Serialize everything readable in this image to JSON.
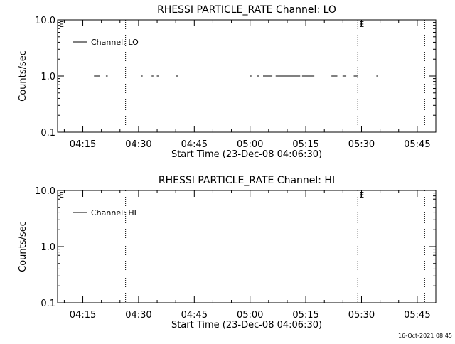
{
  "footer": {
    "timestamp": "16-Oct-2021 08:45"
  },
  "chart_data": [
    {
      "type": "line",
      "title": "RHESSI PARTICLE_RATE Channel: LO",
      "xlabel": "Start Time (23-Dec-08 04:06:30)",
      "ylabel": "Counts/sec",
      "yscale": "log",
      "ylim": [
        0.1,
        10.0
      ],
      "yticks": [
        {
          "value": 0.1,
          "label": "0.1"
        },
        {
          "value": 1.0,
          "label": "1.0"
        },
        {
          "value": 10.0,
          "label": "10.0"
        }
      ],
      "xlim_minutes": [
        248.2,
        350.0
      ],
      "xticks": [
        {
          "minute": 255,
          "label": "04:15"
        },
        {
          "minute": 270,
          "label": "04:30"
        },
        {
          "minute": 285,
          "label": "04:45"
        },
        {
          "minute": 300,
          "label": "05:00"
        },
        {
          "minute": 315,
          "label": "05:15"
        },
        {
          "minute": 330,
          "label": "05:30"
        },
        {
          "minute": 345,
          "label": "05:45"
        }
      ],
      "event_lines": [
        {
          "minute": 266.5,
          "label": ""
        },
        {
          "minute": 329.0,
          "label": "E"
        },
        {
          "minute": 347.0,
          "label": ""
        }
      ],
      "start_marker": "E",
      "legend": {
        "position": "top-left",
        "entries": [
          "Channel: LO"
        ]
      },
      "series": [
        {
          "name": "Channel: LO",
          "segments": [
            [
              258.0,
              259.5,
              1.0
            ],
            [
              261.2,
              261.7,
              1.0
            ],
            [
              270.6,
              271.1,
              1.0
            ],
            [
              273.5,
              274.0,
              1.0
            ],
            [
              274.9,
              275.4,
              1.0
            ],
            [
              280.1,
              280.6,
              1.0
            ],
            [
              299.9,
              300.4,
              1.0
            ],
            [
              301.9,
              302.4,
              1.0
            ],
            [
              303.5,
              306.0,
              1.0
            ],
            [
              306.9,
              313.5,
              1.0
            ],
            [
              314.0,
              317.3,
              1.0
            ],
            [
              321.9,
              323.5,
              1.0
            ],
            [
              324.9,
              325.9,
              1.0
            ],
            [
              327.9,
              328.9,
              1.0
            ],
            [
              334.0,
              334.5,
              1.0
            ]
          ]
        }
      ]
    },
    {
      "type": "line",
      "title": "RHESSI PARTICLE_RATE Channel: HI",
      "xlabel": "Start Time (23-Dec-08 04:06:30)",
      "ylabel": "Counts/sec",
      "yscale": "log",
      "ylim": [
        0.1,
        10.0
      ],
      "yticks": [
        {
          "value": 0.1,
          "label": "0.1"
        },
        {
          "value": 1.0,
          "label": "1.0"
        },
        {
          "value": 10.0,
          "label": "10.0"
        }
      ],
      "xlim_minutes": [
        248.2,
        350.0
      ],
      "xticks": [
        {
          "minute": 255,
          "label": "04:15"
        },
        {
          "minute": 270,
          "label": "04:30"
        },
        {
          "minute": 285,
          "label": "04:45"
        },
        {
          "minute": 300,
          "label": "05:00"
        },
        {
          "minute": 315,
          "label": "05:15"
        },
        {
          "minute": 330,
          "label": "05:30"
        },
        {
          "minute": 345,
          "label": "05:45"
        }
      ],
      "event_lines": [
        {
          "minute": 266.5,
          "label": ""
        },
        {
          "minute": 329.0,
          "label": "E"
        },
        {
          "minute": 347.0,
          "label": ""
        }
      ],
      "start_marker": "E",
      "legend": {
        "position": "top-left",
        "entries": [
          "Channel: HI"
        ]
      },
      "series": [
        {
          "name": "Channel: HI",
          "segments": []
        }
      ]
    }
  ]
}
